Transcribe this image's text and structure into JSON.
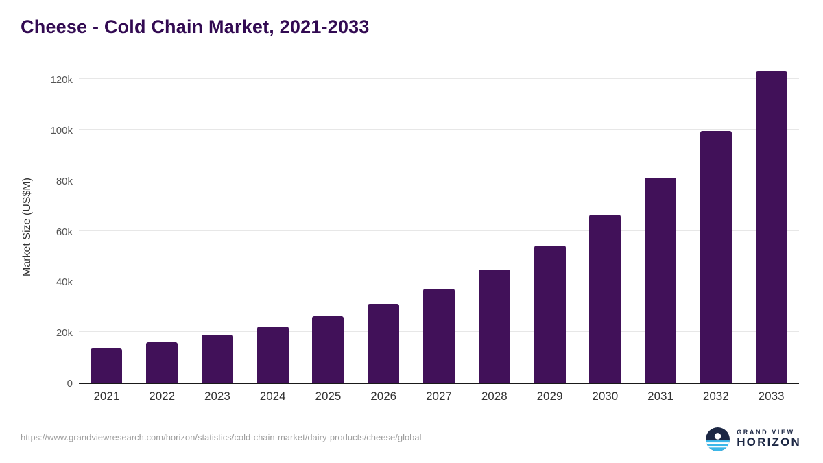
{
  "title": "Cheese - Cold Chain Market, 2021-2033",
  "footer": {
    "source_url": "https://www.grandviewresearch.com/horizon/statistics/cold-chain-market/dairy-products/cheese/global",
    "brand_top": "GRAND VIEW",
    "brand_bottom": "HORIZON"
  },
  "colors": {
    "bar": "#411159",
    "title": "#320a52",
    "grid": "#e7e7e7",
    "axis_line": "#1a1a1a",
    "axis_text": "#555555",
    "xtick_text": "#333333",
    "url_text": "#9e9e9e",
    "brand_navy": "#1c2744",
    "brand_cyan": "#3bb7e9"
  },
  "chart_data": {
    "type": "bar",
    "title": "Cheese - Cold Chain Market, 2021-2033",
    "categories": [
      "2021",
      "2022",
      "2023",
      "2024",
      "2025",
      "2026",
      "2027",
      "2028",
      "2029",
      "2030",
      "2031",
      "2032",
      "2033"
    ],
    "values": [
      13600,
      16100,
      18900,
      22100,
      26200,
      31200,
      37200,
      44800,
      54300,
      66300,
      81000,
      99400,
      123000
    ],
    "xlabel": "",
    "ylabel": "Market Size (US$M)",
    "ylim": [
      0,
      130000
    ],
    "yticks": [
      0,
      20000,
      40000,
      60000,
      80000,
      100000,
      120000
    ],
    "ytick_labels": [
      "0",
      "20k",
      "40k",
      "60k",
      "80k",
      "100k",
      "120k"
    ],
    "grid": true,
    "legend": false,
    "bar_color": "#411159"
  }
}
